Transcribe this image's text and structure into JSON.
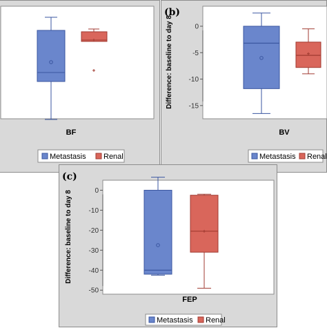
{
  "chart_data": [
    {
      "type": "box",
      "panel_label": "",
      "category": "BF",
      "ylabel": "",
      "yticks": [],
      "legend": "bottom",
      "series": [
        {
          "name": "Metastasis",
          "color": "#6a86cc",
          "min": null,
          "q1": null,
          "median": null,
          "q3": null,
          "max": null,
          "mean": null,
          "outliers": []
        },
        {
          "name": "Renal",
          "color": "#d9665b",
          "min": null,
          "q1": null,
          "median": null,
          "q3": null,
          "max": null,
          "mean": null,
          "outliers": []
        }
      ]
    },
    {
      "type": "box",
      "panel_label": "(b)",
      "category": "BV",
      "ylabel": "Difference: baseline to day 8",
      "ylim": [
        -17.5,
        3
      ],
      "yticks": [
        0,
        -5,
        -10,
        -15
      ],
      "legend": "bottom",
      "series": [
        {
          "name": "Metastasis",
          "color": "#6a86cc",
          "min": -16.5,
          "q1": -11.8,
          "median": -3.2,
          "q3": 0.0,
          "max": 2.5,
          "mean": -6.0,
          "outliers": []
        },
        {
          "name": "Renal",
          "color": "#d9665b",
          "min": -9.0,
          "q1": -7.8,
          "median": -5.5,
          "q3": -3.0,
          "max": -0.5,
          "mean": -5.2,
          "outliers": []
        }
      ]
    },
    {
      "type": "box",
      "panel_label": "(c)",
      "category": "FEP",
      "ylabel": "Difference: baseline to day 8",
      "ylim": [
        -52,
        5
      ],
      "yticks": [
        0,
        -10,
        -20,
        -30,
        -40,
        -50
      ],
      "legend": "bottom",
      "series": [
        {
          "name": "Metastasis",
          "color": "#6a86cc",
          "min": -42.5,
          "q1": -42.0,
          "median": -40.0,
          "q3": 0.0,
          "max": 6.5,
          "mean": -27.5,
          "outliers": []
        },
        {
          "name": "Renal",
          "color": "#d9665b",
          "min": -49.0,
          "q1": -31.0,
          "median": -20.5,
          "q3": -2.5,
          "max": -2.0,
          "mean": -20.5,
          "outliers": []
        }
      ]
    }
  ],
  "legend_labels": [
    "Metastasis",
    "Renal"
  ]
}
